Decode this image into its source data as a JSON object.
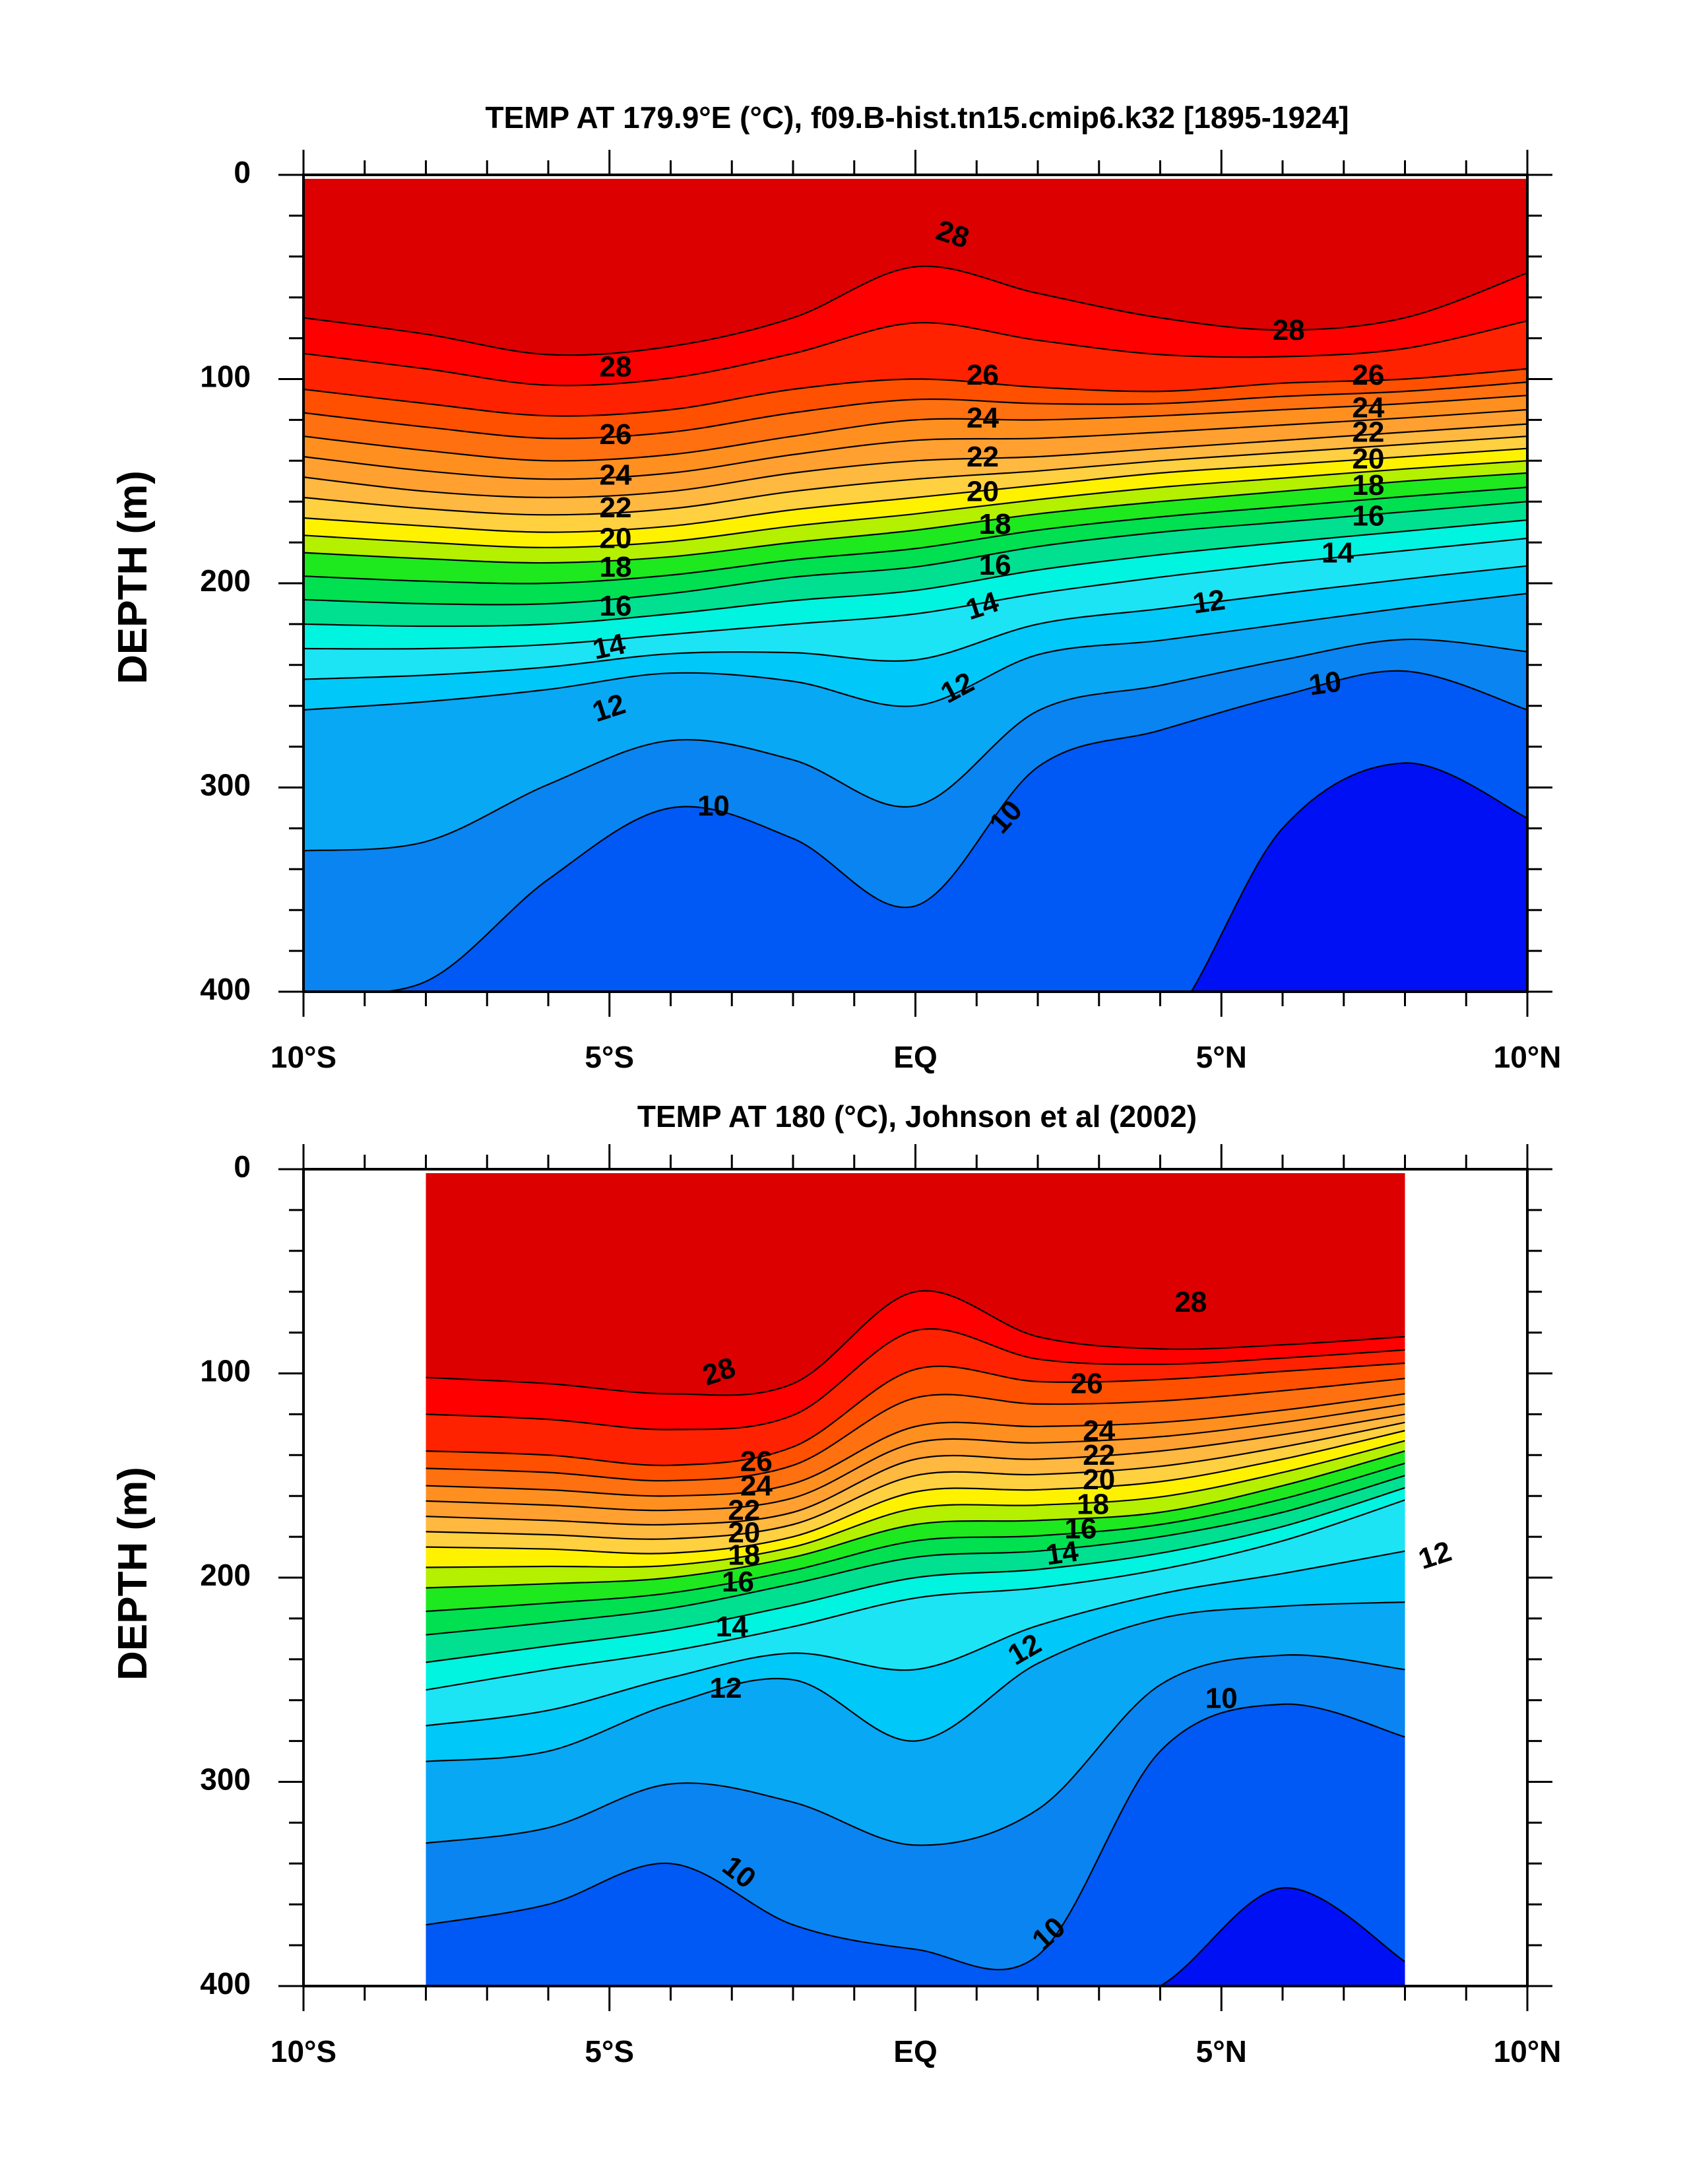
{
  "chart_data": [
    {
      "type": "contour",
      "title": "TEMP AT 179.9°E (°C), f09.B-hist.tn15.cmip6.k32 [1895-1924]",
      "ylabel": "DEPTH (m)",
      "xlabel": "",
      "xlim": [
        -10,
        10
      ],
      "ylim": [
        0,
        400
      ],
      "data_xlim": [
        -10,
        10
      ],
      "x_ticks": [
        {
          "value": -10,
          "label": "10°S"
        },
        {
          "value": -5,
          "label": "5°S"
        },
        {
          "value": 0,
          "label": "EQ"
        },
        {
          "value": 5,
          "label": "5°N"
        },
        {
          "value": 10,
          "label": "10°N"
        }
      ],
      "y_ticks": [
        {
          "value": 0,
          "label": "0"
        },
        {
          "value": 100,
          "label": "100"
        },
        {
          "value": 200,
          "label": "200"
        },
        {
          "value": 300,
          "label": "300"
        },
        {
          "value": 400,
          "label": "400"
        }
      ],
      "x_samples": [
        -10,
        -8,
        -6,
        -4,
        -2,
        0,
        2,
        4,
        6,
        8,
        10
      ],
      "isotherms": [
        {
          "temp": 28,
          "depth": [
            70,
            78,
            88,
            84,
            70,
            45,
            58,
            70,
            76,
            70,
            48
          ]
        },
        {
          "temp": 26,
          "depth": [
            105,
            112,
            118,
            115,
            105,
            100,
            104,
            106,
            102,
            100,
            95
          ]
        },
        {
          "temp": 24,
          "depth": [
            128,
            135,
            140,
            137,
            128,
            120,
            120,
            118,
            115,
            112,
            108
          ]
        },
        {
          "temp": 22,
          "depth": [
            148,
            155,
            158,
            155,
            146,
            140,
            138,
            134,
            130,
            126,
            122
          ]
        },
        {
          "temp": 20,
          "depth": [
            168,
            172,
            175,
            172,
            164,
            158,
            152,
            146,
            142,
            138,
            134
          ]
        },
        {
          "temp": 18,
          "depth": [
            185,
            188,
            190,
            187,
            180,
            174,
            166,
            160,
            155,
            150,
            146
          ]
        },
        {
          "temp": 16,
          "depth": [
            208,
            210,
            210,
            205,
            197,
            192,
            182,
            175,
            170,
            165,
            160
          ]
        },
        {
          "temp": 14,
          "depth": [
            232,
            232,
            230,
            225,
            220,
            215,
            205,
            197,
            190,
            184,
            178
          ]
        },
        {
          "temp": 12,
          "depth": [
            262,
            258,
            252,
            244,
            248,
            260,
            235,
            228,
            220,
            212,
            205
          ]
        },
        {
          "temp": 10,
          "depth": [
            400,
            395,
            345,
            310,
            325,
            358,
            290,
            272,
            255,
            243,
            262
          ]
        },
        {
          "temp": 9,
          "depth": [
            420,
            420,
            420,
            420,
            420,
            420,
            420,
            420,
            320,
            288,
            315
          ]
        }
      ],
      "contour_labels": [
        {
          "text": "28",
          "x": -4.9,
          "y": 95,
          "angle": 0
        },
        {
          "text": "28",
          "x": 0.6,
          "y": 30,
          "angle": 18
        },
        {
          "text": "28",
          "x": 6.1,
          "y": 77,
          "angle": 0
        },
        {
          "text": "26",
          "x": -4.9,
          "y": 128,
          "angle": 0
        },
        {
          "text": "26",
          "x": 1.1,
          "y": 99,
          "angle": 0
        },
        {
          "text": "26",
          "x": 7.4,
          "y": 99,
          "angle": 0
        },
        {
          "text": "24",
          "x": -4.9,
          "y": 148,
          "angle": 0
        },
        {
          "text": "24",
          "x": 1.1,
          "y": 120,
          "angle": 0
        },
        {
          "text": "24",
          "x": 7.4,
          "y": 115,
          "angle": 0
        },
        {
          "text": "22",
          "x": -4.9,
          "y": 164,
          "angle": 0
        },
        {
          "text": "22",
          "x": 1.1,
          "y": 139,
          "angle": 0
        },
        {
          "text": "22",
          "x": 7.4,
          "y": 127,
          "angle": 0
        },
        {
          "text": "20",
          "x": -4.9,
          "y": 179,
          "angle": 0
        },
        {
          "text": "20",
          "x": 1.1,
          "y": 156,
          "angle": 0
        },
        {
          "text": "20",
          "x": 7.4,
          "y": 140,
          "angle": 0
        },
        {
          "text": "18",
          "x": -4.9,
          "y": 193,
          "angle": 0
        },
        {
          "text": "18",
          "x": 1.3,
          "y": 172,
          "angle": 0
        },
        {
          "text": "18",
          "x": 7.4,
          "y": 153,
          "angle": 0
        },
        {
          "text": "16",
          "x": -4.9,
          "y": 212,
          "angle": 0
        },
        {
          "text": "16",
          "x": 1.3,
          "y": 192,
          "angle": 0
        },
        {
          "text": "16",
          "x": 7.4,
          "y": 168,
          "angle": 0
        },
        {
          "text": "14",
          "x": -5.0,
          "y": 232,
          "angle": -12
        },
        {
          "text": "14",
          "x": 1.1,
          "y": 212,
          "angle": -18
        },
        {
          "text": "14",
          "x": 6.9,
          "y": 186,
          "angle": 0
        },
        {
          "text": "12",
          "x": -5.0,
          "y": 262,
          "angle": -18
        },
        {
          "text": "12",
          "x": 0.7,
          "y": 252,
          "angle": -28
        },
        {
          "text": "12",
          "x": 4.8,
          "y": 210,
          "angle": -8
        },
        {
          "text": "10",
          "x": -3.3,
          "y": 310,
          "angle": 0
        },
        {
          "text": "10",
          "x": 1.5,
          "y": 315,
          "angle": -48
        },
        {
          "text": "10",
          "x": 6.7,
          "y": 250,
          "angle": -8
        }
      ]
    },
    {
      "type": "contour",
      "title": "TEMP AT 180 (°C), Johnson et al (2002)",
      "ylabel": "DEPTH (m)",
      "xlabel": "",
      "xlim": [
        -10,
        10
      ],
      "ylim": [
        0,
        400
      ],
      "data_xlim": [
        -8,
        8
      ],
      "x_ticks": [
        {
          "value": -10,
          "label": "10°S"
        },
        {
          "value": -5,
          "label": "5°S"
        },
        {
          "value": 0,
          "label": "EQ"
        },
        {
          "value": 5,
          "label": "5°N"
        },
        {
          "value": 10,
          "label": "10°N"
        }
      ],
      "y_ticks": [
        {
          "value": 0,
          "label": "0"
        },
        {
          "value": 100,
          "label": "100"
        },
        {
          "value": 200,
          "label": "200"
        },
        {
          "value": 300,
          "label": "300"
        },
        {
          "value": 400,
          "label": "400"
        }
      ],
      "x_samples": [
        -8,
        -6,
        -4,
        -2,
        0,
        2,
        4,
        6,
        8
      ],
      "isotherms": [
        {
          "temp": 28,
          "depth": [
            102,
            105,
            110,
            105,
            60,
            82,
            88,
            86,
            82
          ]
        },
        {
          "temp": 26,
          "depth": [
            138,
            140,
            145,
            136,
            98,
            104,
            103,
            99,
            95
          ]
        },
        {
          "temp": 24,
          "depth": [
            155,
            157,
            160,
            154,
            126,
            126,
            124,
            118,
            110
          ]
        },
        {
          "temp": 22,
          "depth": [
            170,
            172,
            174,
            168,
            142,
            142,
            138,
            130,
            120
          ]
        },
        {
          "temp": 20,
          "depth": [
            185,
            186,
            188,
            180,
            158,
            157,
            153,
            142,
            128
          ]
        },
        {
          "temp": 18,
          "depth": [
            205,
            203,
            200,
            190,
            174,
            172,
            168,
            155,
            138
          ]
        },
        {
          "temp": 16,
          "depth": [
            228,
            222,
            215,
            203,
            190,
            187,
            180,
            168,
            150
          ]
        },
        {
          "temp": 14,
          "depth": [
            255,
            245,
            236,
            224,
            210,
            205,
            196,
            182,
            162
          ]
        },
        {
          "temp": 12,
          "depth": [
            290,
            285,
            262,
            250,
            280,
            242,
            220,
            214,
            212
          ]
        },
        {
          "temp": 10,
          "depth": [
            370,
            360,
            340,
            370,
            382,
            385,
            285,
            262,
            278
          ]
        },
        {
          "temp": 9,
          "depth": [
            420,
            420,
            420,
            420,
            420,
            420,
            400,
            352,
            388
          ]
        }
      ],
      "contour_labels": [
        {
          "text": "28",
          "x": -3.2,
          "y": 100,
          "angle": -18
        },
        {
          "text": "28",
          "x": 4.5,
          "y": 66,
          "angle": 0
        },
        {
          "text": "26",
          "x": -2.6,
          "y": 144,
          "angle": 0
        },
        {
          "text": "26",
          "x": 2.8,
          "y": 106,
          "angle": 0
        },
        {
          "text": "24",
          "x": -2.6,
          "y": 156,
          "angle": 0
        },
        {
          "text": "24",
          "x": 3.0,
          "y": 129,
          "angle": 0
        },
        {
          "text": "22",
          "x": -2.8,
          "y": 168,
          "angle": 0
        },
        {
          "text": "22",
          "x": 3.0,
          "y": 141,
          "angle": 0
        },
        {
          "text": "20",
          "x": -2.8,
          "y": 179,
          "angle": 0
        },
        {
          "text": "20",
          "x": 3.0,
          "y": 153,
          "angle": 0
        },
        {
          "text": "18",
          "x": -2.8,
          "y": 190,
          "angle": 0
        },
        {
          "text": "18",
          "x": 2.9,
          "y": 165,
          "angle": 0
        },
        {
          "text": "16",
          "x": -2.9,
          "y": 203,
          "angle": 0
        },
        {
          "text": "16",
          "x": 2.7,
          "y": 177,
          "angle": 0
        },
        {
          "text": "14",
          "x": -3.0,
          "y": 225,
          "angle": 0
        },
        {
          "text": "14",
          "x": 2.4,
          "y": 189,
          "angle": -8
        },
        {
          "text": "12",
          "x": -3.1,
          "y": 255,
          "angle": 0
        },
        {
          "text": "12",
          "x": 1.8,
          "y": 236,
          "angle": -30
        },
        {
          "text": "12",
          "x": 8.5,
          "y": 190,
          "angle": -18
        },
        {
          "text": "10",
          "x": -2.9,
          "y": 345,
          "angle": 38
        },
        {
          "text": "10",
          "x": 2.2,
          "y": 375,
          "angle": -42
        },
        {
          "text": "10",
          "x": 5.0,
          "y": 260,
          "angle": 0
        }
      ]
    }
  ],
  "colors": {
    "palette": {
      "9": "#0010f5",
      "10": "#0058f5",
      "11": "#0a84f0",
      "12": "#08a8f5",
      "13": "#00c8f8",
      "14": "#1ce4f4",
      "15": "#00f4e0",
      "16": "#00e090",
      "17": "#00e050",
      "18": "#1ee81e",
      "19": "#b4f000",
      "20": "#fff200",
      "21": "#ffd040",
      "22": "#ffb840",
      "23": "#ffa030",
      "24": "#ff9020",
      "25": "#ff7010",
      "26": "#ff5000",
      "27": "#ff2200",
      "28": "#ff0000",
      "29": "#dc0000"
    }
  }
}
